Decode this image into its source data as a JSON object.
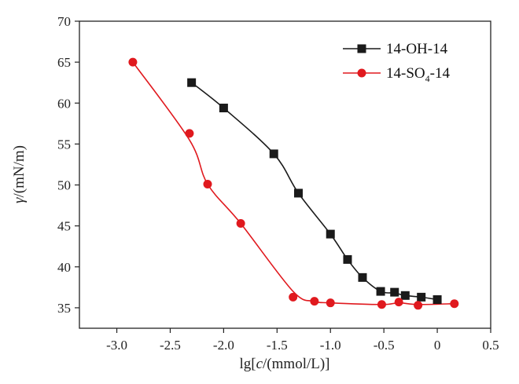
{
  "chart_data": {
    "type": "line",
    "title": "",
    "xlabel_parts": [
      "lg[",
      "c",
      "/(mmol/L)]"
    ],
    "ylabel_parts": [
      "γ",
      "/(mN/m)"
    ],
    "xlim": [
      -3.35,
      0.5
    ],
    "ylim": [
      32.5,
      70
    ],
    "xticks": [
      -3.0,
      -2.5,
      -2.0,
      -1.5,
      -1.0,
      -0.5,
      0,
      0.5
    ],
    "xtick_labels": [
      "-3.0",
      "-2.5",
      "-2.0",
      "-1.5",
      "-1.0",
      "-0.5",
      "0",
      "0.5"
    ],
    "yticks": [
      35,
      40,
      45,
      50,
      55,
      60,
      65,
      70
    ],
    "ytick_labels": [
      "35",
      "40",
      "45",
      "50",
      "55",
      "60",
      "65",
      "70"
    ],
    "legend_position": "top-right",
    "series": [
      {
        "name": "14-OH-14",
        "label_parts": [
          "14-OH-14",
          "",
          ""
        ],
        "color": "#1a1a1a",
        "marker": "square",
        "points": [
          [
            -2.3,
            62.5
          ],
          [
            -2.0,
            59.4
          ],
          [
            -1.53,
            53.8
          ],
          [
            -1.3,
            49.0
          ],
          [
            -1.0,
            44.0
          ],
          [
            -0.84,
            40.9
          ],
          [
            -0.7,
            38.7
          ],
          [
            -0.53,
            37.0
          ],
          [
            -0.4,
            36.9
          ],
          [
            -0.3,
            36.5
          ],
          [
            -0.15,
            36.3
          ],
          [
            0.0,
            36.0
          ]
        ],
        "curve": [
          [
            -2.3,
            62.5
          ],
          [
            -2.0,
            59.4
          ],
          [
            -1.53,
            53.8
          ],
          [
            -1.3,
            49.0
          ],
          [
            -1.0,
            44.0
          ],
          [
            -0.84,
            40.9
          ],
          [
            -0.7,
            38.7
          ],
          [
            -0.53,
            37.0
          ],
          [
            -0.4,
            36.8
          ],
          [
            -0.3,
            36.5
          ],
          [
            -0.15,
            36.3
          ],
          [
            0.0,
            36.0
          ]
        ]
      },
      {
        "name": "14-SO4-14",
        "label_parts": [
          "14-SO",
          "4",
          "-14"
        ],
        "color": "#e0191e",
        "marker": "circle",
        "points": [
          [
            -2.85,
            65.0
          ],
          [
            -2.32,
            56.3
          ],
          [
            -2.15,
            50.1
          ],
          [
            -1.84,
            45.3
          ],
          [
            -1.35,
            36.3
          ],
          [
            -1.15,
            35.8
          ],
          [
            -1.0,
            35.6
          ],
          [
            -0.52,
            35.4
          ],
          [
            -0.36,
            35.7
          ],
          [
            -0.18,
            35.3
          ],
          [
            0.16,
            35.5
          ]
        ],
        "curve": [
          [
            -2.85,
            65.0
          ],
          [
            -2.32,
            55.5
          ],
          [
            -2.15,
            50.1
          ],
          [
            -1.84,
            45.3
          ],
          [
            -1.35,
            37.0
          ],
          [
            -1.15,
            35.8
          ],
          [
            -1.0,
            35.6
          ],
          [
            -0.52,
            35.4
          ],
          [
            -0.36,
            35.6
          ],
          [
            -0.18,
            35.4
          ],
          [
            0.16,
            35.5
          ]
        ]
      }
    ]
  }
}
